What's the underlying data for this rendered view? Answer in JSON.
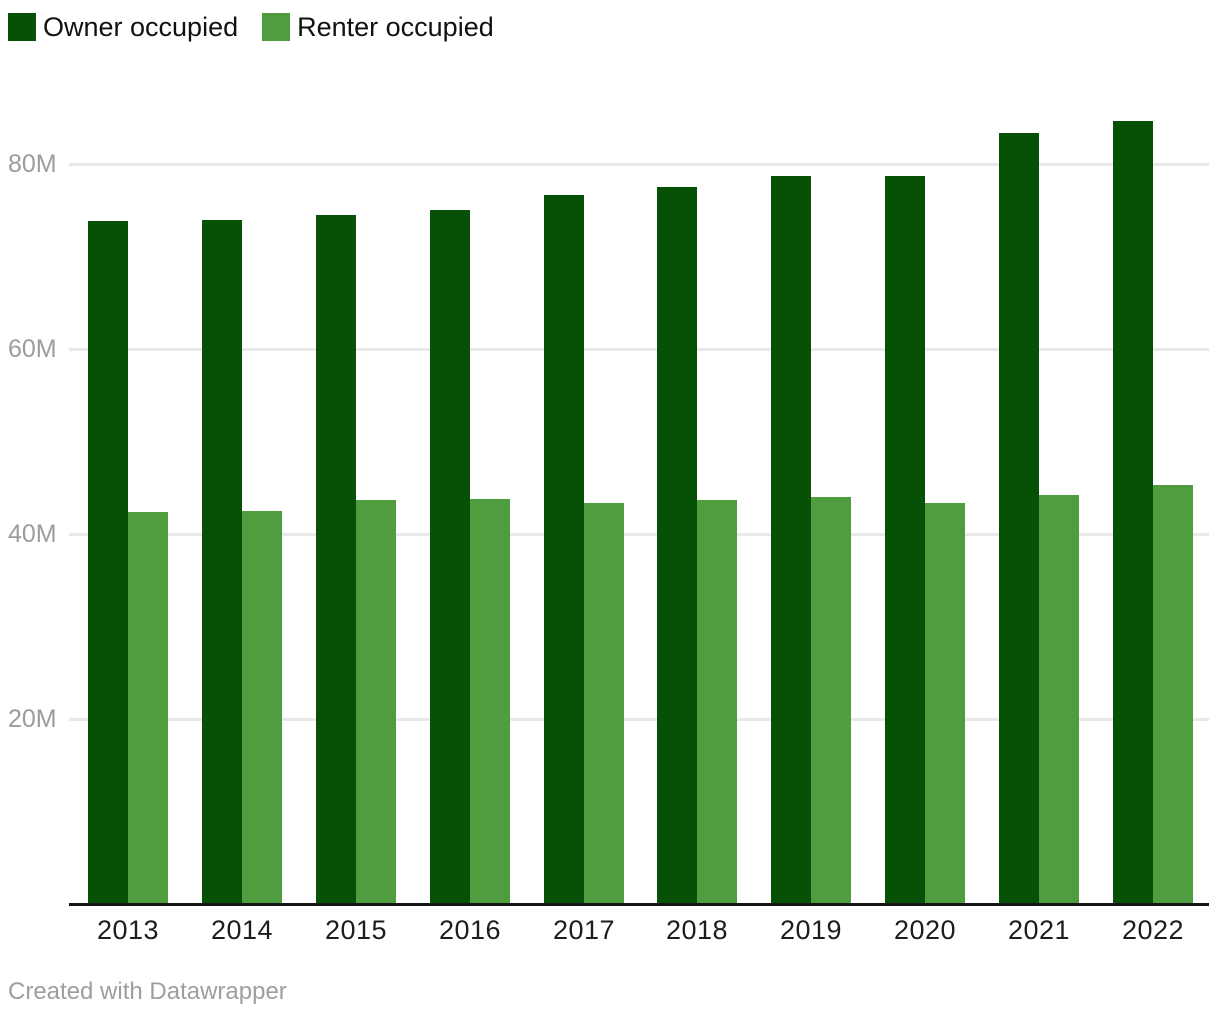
{
  "legend": {
    "items": [
      {
        "label": "Owner occupied",
        "color": "#075107"
      },
      {
        "label": "Renter occupied",
        "color": "#4f9d3e"
      }
    ]
  },
  "chart_data": {
    "type": "bar",
    "title": "",
    "xlabel": "",
    "ylabel": "",
    "unit": "M",
    "categories": [
      "2013",
      "2014",
      "2015",
      "2016",
      "2017",
      "2018",
      "2019",
      "2020",
      "2021",
      "2022"
    ],
    "series": [
      {
        "name": "Owner occupied",
        "color": "#075107",
        "values": [
          73.8,
          73.9,
          74.5,
          75.0,
          76.6,
          77.5,
          78.7,
          78.7,
          83.4,
          84.6
        ]
      },
      {
        "name": "Renter occupied",
        "color": "#4f9d3e",
        "values": [
          42.4,
          42.5,
          43.7,
          43.8,
          43.4,
          43.7,
          44.0,
          43.4,
          44.2,
          45.3
        ]
      }
    ],
    "y_ticks": [
      {
        "value": 20,
        "label": "20M"
      },
      {
        "value": 40,
        "label": "40M"
      },
      {
        "value": 60,
        "label": "60M"
      },
      {
        "value": 80,
        "label": "80M"
      }
    ],
    "ylim": [
      0,
      97.7
    ],
    "grid": "horizontal",
    "legend_position": "top-left"
  },
  "footer": {
    "credit": "Created with Datawrapper"
  },
  "colors": {
    "background": "#ffffff",
    "axis_line": "#161616",
    "gridline": "#e9e9e9",
    "tick_label": "#9c9c9c",
    "x_label": "#1d1d1d",
    "footer_text": "#9e9e9e"
  }
}
